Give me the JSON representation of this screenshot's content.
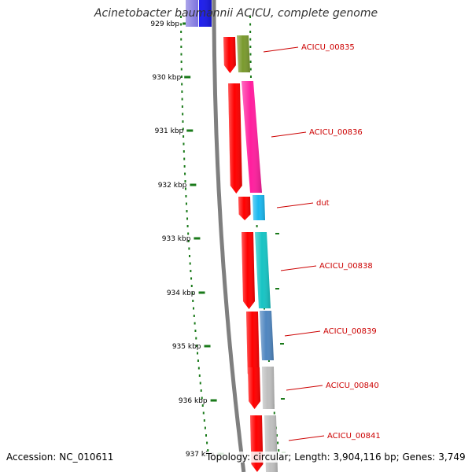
{
  "title": "Acinetobacter baumannii ACICU, complete genome",
  "footer": {
    "accession": "Accession: NC_010611",
    "topology": "Topology: circular; Length: 3,904,116 bp; Genes: 3,749"
  },
  "scale": {
    "tick_labels": [
      "929 kbp",
      "930 kbp",
      "931 kbp",
      "932 kbp",
      "933 kbp",
      "934 kbp",
      "935 kbp",
      "936 kbp",
      "937 kbp"
    ]
  },
  "genes": [
    {
      "label": "ACICU_00835",
      "color": "#7a9a2e"
    },
    {
      "label": "ACICU_00836",
      "color": "#ff1f9e"
    },
    {
      "label": "dut",
      "color": "#1ab8f0"
    },
    {
      "label": "ACICU_00838",
      "color": "#17c4c4"
    },
    {
      "label": "ACICU_00839",
      "color": "#4f86c0"
    },
    {
      "label": "ACICU_00840",
      "color": "#bfbfbf"
    },
    {
      "label": "ACICU_00841",
      "color": "#bfbfbf"
    }
  ],
  "colors": {
    "forward_strand": "#ff0000",
    "top_gene_blue": "#1a1aee",
    "top_gene_violet": "#7e74de",
    "label_red": "#cc0000",
    "tick_green": "#1a7a1a",
    "backbone_gray": "#7f7f7f"
  }
}
